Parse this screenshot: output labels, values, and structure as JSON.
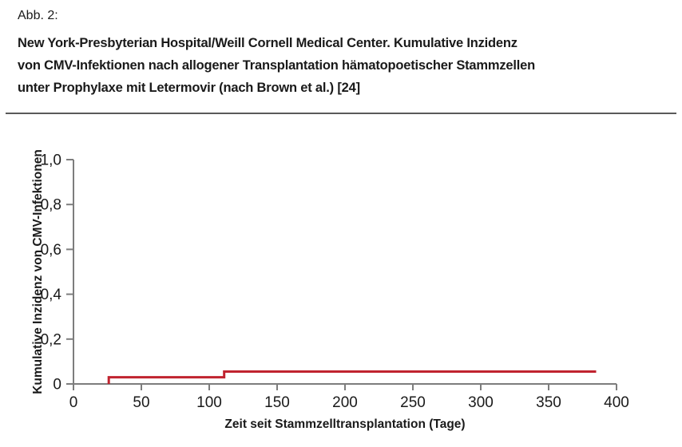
{
  "figure": {
    "label": "Abb. 2:",
    "caption_lines": [
      "New York-Presbyterian Hospital/Weill Cornell Medical Center. Kumulative Inzidenz",
      "von CMV-Infektionen nach allogener Transplantation hämatopoetischer Stammzellen",
      "unter Prophylaxe mit Letermovir (nach Brown et al.) [24]"
    ]
  },
  "colors": {
    "series_red": "#c0232f",
    "axis_gray": "#7d7d7d",
    "text_dark": "#1a1a1a",
    "divider_gray": "#5a5a5a",
    "background": "#ffffff"
  },
  "chart_data": {
    "type": "line",
    "subtype": "step",
    "title": "",
    "xlabel": "Zeit seit Stammzelltransplantation (Tage)",
    "ylabel": "Kumulative Inzidenz von CMV-Infektionen",
    "xlim": [
      0,
      400
    ],
    "ylim": [
      0,
      1.0
    ],
    "xticks": [
      {
        "v": 0,
        "label": "0"
      },
      {
        "v": 50,
        "label": "50"
      },
      {
        "v": 100,
        "label": "100"
      },
      {
        "v": 150,
        "label": "150"
      },
      {
        "v": 200,
        "label": "200"
      },
      {
        "v": 250,
        "label": "250"
      },
      {
        "v": 300,
        "label": "300"
      },
      {
        "v": 350,
        "label": "350"
      },
      {
        "v": 400,
        "label": "400"
      }
    ],
    "yticks": [
      {
        "v": 0.0,
        "label": "0"
      },
      {
        "v": 0.2,
        "label": "0,2"
      },
      {
        "v": 0.4,
        "label": "0,4"
      },
      {
        "v": 0.6,
        "label": "0,6"
      },
      {
        "v": 0.8,
        "label": "0,8"
      },
      {
        "v": 1.0,
        "label": "1,0"
      }
    ],
    "grid": false,
    "legend": false,
    "series": [
      {
        "name": "Kumulative Inzidenz von CMV-Infektionen unter Letermovir",
        "color": "#c0232f",
        "points": [
          [
            26,
            0
          ],
          [
            26,
            0.03
          ],
          [
            111,
            0.03
          ],
          [
            111,
            0.055
          ],
          [
            385,
            0.055
          ]
        ]
      }
    ]
  }
}
